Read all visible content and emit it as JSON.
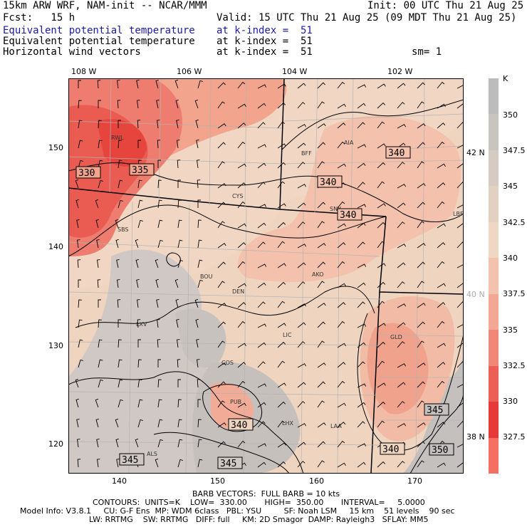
{
  "header": {
    "line1_left": "15km ARW WRF, NAM-init -- NCAR/MMM",
    "line1_right": "Init: 00 UTC Thu 21 Aug 25",
    "line2_left": "Fcst:   15 h",
    "line2_right": "Valid: 15 UTC Thu 21 Aug 25 (09 MDT Thu 21 Aug 25)",
    "fields": [
      {
        "name": "Equivalent potential temperature",
        "level": "at k-index =  51",
        "color": "#1a1aa6"
      },
      {
        "name": "Equivalent potential temperature",
        "level": "at k-index =  51"
      },
      {
        "name": "Horizontal wind vectors",
        "level": "at k-index =  51",
        "extra": "sm= 1"
      }
    ]
  },
  "axes": {
    "top_lon": [
      "108 W",
      "106 W",
      "104 W",
      "102 W"
    ],
    "left_y": [
      "150",
      "140",
      "130",
      "120"
    ],
    "bottom_x": [
      "140",
      "150",
      "160",
      "170"
    ],
    "right_lat": [
      "42 N",
      "40 N",
      "38 N"
    ]
  },
  "stations": [
    "RWL",
    "BFF",
    "AIA",
    "CYS",
    "SNY",
    "SBS",
    "BOU",
    "AKO",
    "DEN",
    "LXV",
    "LIC",
    "GLD",
    "COS",
    "PUB",
    "LHX",
    "LAA",
    "ALS",
    "LBF"
  ],
  "contour_labels": [
    "330",
    "335",
    "340",
    "340",
    "340",
    "340",
    "340",
    "345",
    "345",
    "345",
    "350"
  ],
  "colorbar": {
    "unit": "K",
    "labels": [
      "350",
      "347.5",
      "345",
      "342.5",
      "340",
      "337.5",
      "335",
      "332.5",
      "330",
      "327.5"
    ],
    "colors": [
      "#bcbcbc",
      "#c8c4c0",
      "#d5cbc3",
      "#e2d0c0",
      "#f0d7c3",
      "#f3c3ad",
      "#f2a893",
      "#f08778",
      "#ec5f56",
      "#e53a37",
      "#f56f63"
    ]
  },
  "footer": {
    "line1": "BARB VECTORS:  FULL BARB = 10 kts",
    "line2": "CONTOURS:  UNITS=K    LOW=  330.00       HIGH=  350.00       INTERVAL=     5.0000",
    "line3": "Model Info: V3.8.1     CU: G-F Ens  MP: WDM 6class   PBL: YSU         SF: Noah LSM     15 km    51 levels    90 sec",
    "line4": "LW: RRTMG    SW: RRTMG   DIFF: full     KM: 2D Smagor  DAMP: Rayleigh3   SFLAY: MM5"
  }
}
